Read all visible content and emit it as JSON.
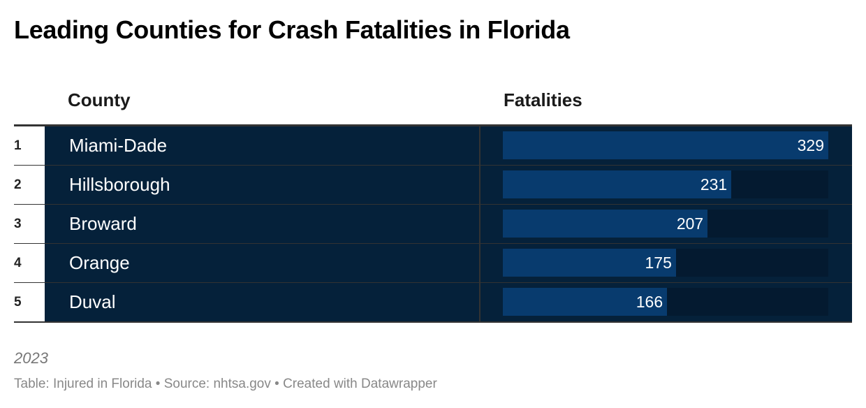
{
  "title": "Leading Counties for Crash Fatalities in Florida",
  "columns": {
    "county": "County",
    "fatalities": "Fatalities"
  },
  "chart_data": {
    "type": "table",
    "title": "Leading Counties for Crash Fatalities in Florida",
    "rows": [
      {
        "rank": "1",
        "county": "Miami-Dade",
        "fatalities": 329
      },
      {
        "rank": "2",
        "county": "Hillsborough",
        "fatalities": 231
      },
      {
        "rank": "3",
        "county": "Broward",
        "fatalities": 207
      },
      {
        "rank": "4",
        "county": "Orange",
        "fatalities": 175
      },
      {
        "rank": "5",
        "county": "Duval",
        "fatalities": 166
      }
    ],
    "max": 329
  },
  "notes": "2023",
  "source": "Table: Injured in Florida • Source: nhtsa.gov • Created with Datawrapper",
  "colors": {
    "cell": "#05213a",
    "bar": "#083b6e",
    "track": "#041a30"
  }
}
